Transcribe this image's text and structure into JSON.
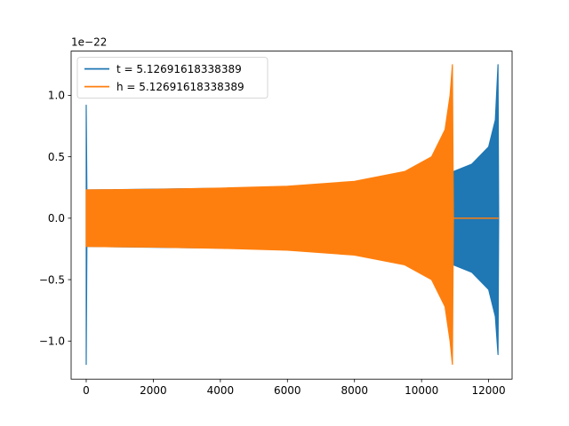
{
  "chart_data": {
    "type": "line",
    "title": "",
    "xlabel": "",
    "ylabel": "",
    "y_scale_label": "1e−22",
    "xlim": [
      -450,
      12700
    ],
    "ylim": [
      -1.31,
      1.36
    ],
    "xticks": [
      0,
      2000,
      4000,
      6000,
      8000,
      10000,
      12000
    ],
    "xtick_labels": [
      "0",
      "2000",
      "4000",
      "6000",
      "8000",
      "10000",
      "12000"
    ],
    "yticks": [
      -1.0,
      -0.5,
      0.0,
      0.5,
      1.0
    ],
    "ytick_labels": [
      "−1.0",
      "−0.5",
      "0.0",
      "0.5",
      "1.0"
    ],
    "grid": false,
    "legend_position": "upper left",
    "series": [
      {
        "name": "t = 5.12691618338389",
        "color": "#1f77b4",
        "envelope": {
          "x": [
            0,
            20,
            60,
            6000,
            10000,
            10900,
            10950,
            11500,
            12000,
            12200,
            12280,
            12300
          ],
          "upper": [
            0.92,
            0.23,
            0.23,
            0.25,
            0.31,
            0.38,
            0.38,
            0.44,
            0.58,
            0.8,
            1.25,
            0.0
          ],
          "lower": [
            -1.19,
            -0.23,
            -0.23,
            -0.25,
            -0.31,
            -0.38,
            -0.38,
            -0.44,
            -0.58,
            -0.8,
            -1.11,
            0.0
          ]
        }
      },
      {
        "name": "h = 5.12691618338389",
        "color": "#ff7f0e",
        "envelope": {
          "x": [
            0,
            20,
            2000,
            4000,
            6000,
            8000,
            9500,
            10300,
            10700,
            10850,
            10920,
            10950
          ],
          "upper": [
            0.23,
            0.23,
            0.235,
            0.245,
            0.26,
            0.3,
            0.38,
            0.5,
            0.72,
            1.0,
            1.25,
            0.0
          ],
          "lower": [
            -0.23,
            -0.23,
            -0.235,
            -0.245,
            -0.26,
            -0.3,
            -0.38,
            -0.5,
            -0.72,
            -1.0,
            -1.19,
            0.0
          ]
        },
        "flat_tail": {
          "x": [
            10950,
            12300
          ],
          "y": 0.0
        }
      }
    ]
  }
}
